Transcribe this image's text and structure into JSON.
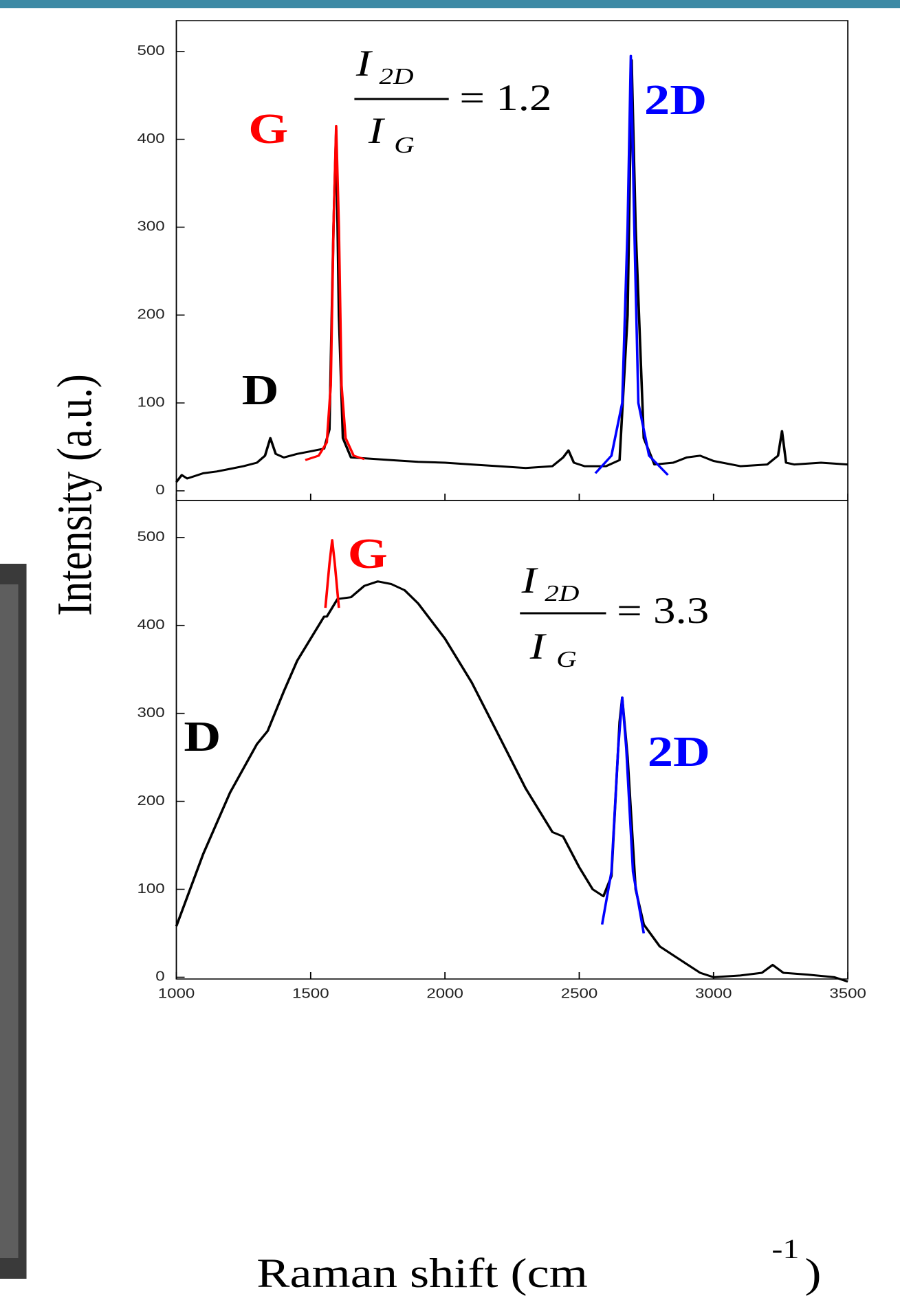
{
  "chart_data": [
    {
      "type": "line",
      "xlim": [
        1000,
        3500
      ],
      "ylim": [
        -11,
        535
      ],
      "yticks": [
        0,
        100,
        200,
        300,
        400,
        500
      ],
      "series": [
        {
          "color": "#000000",
          "x": [
            1000,
            1020,
            1040,
            1060,
            1100,
            1150,
            1200,
            1250,
            1300,
            1330,
            1350,
            1370,
            1400,
            1450,
            1500,
            1550,
            1570,
            1585,
            1595,
            1605,
            1620,
            1650,
            1700,
            1800,
            1900,
            2000,
            2100,
            2200,
            2300,
            2400,
            2440,
            2460,
            2480,
            2520,
            2600,
            2650,
            2680,
            2695,
            2710,
            2740,
            2780,
            2850,
            2900,
            2950,
            3000,
            3100,
            3200,
            3240,
            3255,
            3270,
            3300,
            3400,
            3500
          ],
          "values": [
            10,
            18,
            14,
            16,
            20,
            22,
            25,
            28,
            32,
            40,
            60,
            42,
            38,
            42,
            45,
            48,
            70,
            300,
            410,
            200,
            60,
            38,
            37,
            35,
            33,
            32,
            30,
            28,
            26,
            28,
            38,
            46,
            32,
            28,
            28,
            35,
            200,
            490,
            300,
            60,
            30,
            32,
            38,
            40,
            34,
            28,
            30,
            40,
            68,
            32,
            30,
            32,
            30
          ]
        },
        {
          "color": "#ff0000",
          "x": [
            1480,
            1530,
            1560,
            1575,
            1585,
            1595,
            1605,
            1615,
            1630,
            1660,
            1700
          ],
          "values": [
            35,
            40,
            55,
            120,
            300,
            415,
            300,
            120,
            60,
            40,
            36
          ]
        },
        {
          "color": "#0000ff",
          "x": [
            2560,
            2620,
            2660,
            2680,
            2692,
            2705,
            2720,
            2760,
            2830
          ],
          "values": [
            20,
            40,
            100,
            300,
            495,
            300,
            100,
            40,
            18
          ]
        }
      ],
      "labels": {
        "G": "G",
        "D": "D",
        "2D": "2D"
      },
      "ratio": {
        "numerator": "I",
        "numerator_sub": "2D",
        "denominator": "I",
        "denominator_sub": "G",
        "value": "= 1.2"
      }
    },
    {
      "type": "line",
      "xlim": [
        1000,
        3500
      ],
      "ylim": [
        -2,
        542
      ],
      "yticks": [
        0,
        100,
        200,
        300,
        400,
        500
      ],
      "xticks": [
        1000,
        1500,
        2000,
        2500,
        3000,
        3500
      ],
      "series": [
        {
          "color": "#000000",
          "x": [
            1000,
            1100,
            1200,
            1300,
            1340,
            1400,
            1450,
            1500,
            1550,
            1560,
            1600,
            1650,
            1700,
            1750,
            1800,
            1850,
            1900,
            1950,
            2000,
            2100,
            2200,
            2300,
            2400,
            2440,
            2500,
            2550,
            2590,
            2620,
            2650,
            2660,
            2680,
            2710,
            2740,
            2800,
            2900,
            2950,
            3000,
            3100,
            3180,
            3220,
            3260,
            3350,
            3450,
            3500
          ],
          "values": [
            58,
            140,
            210,
            265,
            280,
            325,
            360,
            385,
            410,
            410,
            430,
            432,
            445,
            450,
            447,
            440,
            425,
            405,
            385,
            335,
            275,
            215,
            165,
            160,
            125,
            100,
            92,
            115,
            290,
            318,
            250,
            100,
            60,
            35,
            15,
            5,
            0,
            2,
            5,
            14,
            5,
            3,
            0,
            -5
          ]
        },
        {
          "color": "#ff0000",
          "x": [
            1555,
            1570,
            1580,
            1590,
            1605
          ],
          "values": [
            420,
            470,
            497,
            470,
            420
          ]
        },
        {
          "color": "#0000ff",
          "x": [
            2585,
            2620,
            2645,
            2660,
            2675,
            2700,
            2740
          ],
          "values": [
            60,
            120,
            260,
            318,
            260,
            120,
            50
          ]
        }
      ],
      "labels": {
        "G": "G",
        "D": "D",
        "2D": "2D"
      },
      "ratio": {
        "numerator": "I",
        "numerator_sub": "2D",
        "denominator": "I",
        "denominator_sub": "G",
        "value": "= 3.3"
      }
    }
  ],
  "y_label": "Intensity (a.u.)",
  "x_label": {
    "text": "Raman shift (cm",
    "superscript": "-1",
    "close": ")"
  }
}
